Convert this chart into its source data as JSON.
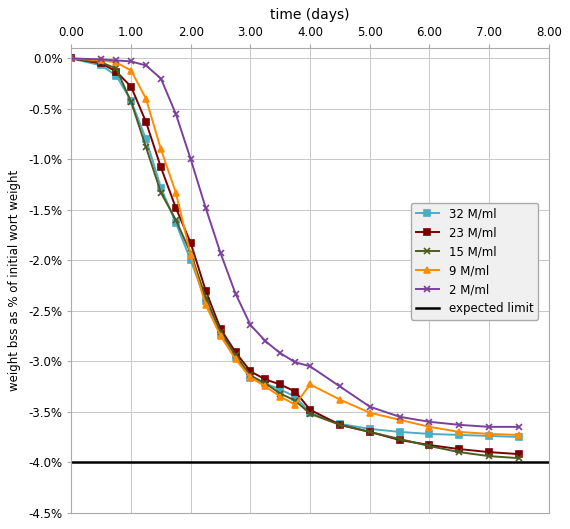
{
  "title": "time (days)",
  "ylabel": "weight bss as % of initial wort weight",
  "xlim": [
    0,
    8.0
  ],
  "ylim": [
    -0.045,
    0.001
  ],
  "xticks": [
    0,
    1.0,
    2.0,
    3.0,
    4.0,
    5.0,
    6.0,
    7.0,
    8.0
  ],
  "yticks": [
    0.0,
    -0.005,
    -0.01,
    -0.015,
    -0.02,
    -0.025,
    -0.03,
    -0.035,
    -0.04,
    -0.045
  ],
  "series": [
    {
      "label": "32 M/ml",
      "color": "#4BACC6",
      "marker": "s",
      "x": [
        0,
        0.5,
        0.75,
        1.0,
        1.25,
        1.5,
        1.75,
        2.0,
        2.25,
        2.5,
        2.75,
        3.0,
        3.25,
        3.5,
        3.75,
        4.0,
        4.5,
        5.0,
        5.5,
        6.0,
        6.5,
        7.0,
        7.5
      ],
      "y": [
        0,
        -0.0007,
        -0.0017,
        -0.0042,
        -0.008,
        -0.0128,
        -0.0163,
        -0.02,
        -0.024,
        -0.0274,
        -0.0296,
        -0.0317,
        -0.0322,
        -0.0328,
        -0.0335,
        -0.0351,
        -0.0362,
        -0.0367,
        -0.037,
        -0.0372,
        -0.0373,
        -0.0374,
        -0.0375
      ]
    },
    {
      "label": "23 M/ml",
      "color": "#7B0000",
      "marker": "s",
      "x": [
        0,
        0.5,
        0.75,
        1.0,
        1.25,
        1.5,
        1.75,
        2.0,
        2.25,
        2.5,
        2.75,
        3.0,
        3.25,
        3.5,
        3.75,
        4.0,
        4.5,
        5.0,
        5.5,
        6.0,
        6.5,
        7.0,
        7.5
      ],
      "y": [
        0,
        -0.0005,
        -0.0013,
        -0.0028,
        -0.0063,
        -0.0108,
        -0.0148,
        -0.0183,
        -0.023,
        -0.0268,
        -0.0291,
        -0.031,
        -0.0318,
        -0.0323,
        -0.033,
        -0.0348,
        -0.0363,
        -0.037,
        -0.0378,
        -0.0383,
        -0.0387,
        -0.039,
        -0.0392
      ]
    },
    {
      "label": "15 M/ml",
      "color": "#4E5B1F",
      "marker": "x",
      "x": [
        0,
        0.5,
        0.75,
        1.0,
        1.25,
        1.5,
        1.75,
        2.0,
        2.25,
        2.5,
        2.75,
        3.0,
        3.25,
        3.5,
        3.75,
        4.0,
        4.5,
        5.0,
        5.5,
        6.0,
        6.5,
        7.0,
        7.5
      ],
      "y": [
        0,
        -0.0004,
        -0.001,
        -0.0043,
        -0.0088,
        -0.0133,
        -0.016,
        -0.0193,
        -0.0237,
        -0.0271,
        -0.0294,
        -0.0314,
        -0.0322,
        -0.0332,
        -0.0339,
        -0.0352,
        -0.0363,
        -0.037,
        -0.0377,
        -0.0384,
        -0.039,
        -0.0394,
        -0.0396
      ]
    },
    {
      "label": "9 M/ml",
      "color": "#FF8C00",
      "marker": "^",
      "x": [
        0,
        0.5,
        0.75,
        1.0,
        1.25,
        1.5,
        1.75,
        2.0,
        2.25,
        2.5,
        2.75,
        3.0,
        3.25,
        3.5,
        3.75,
        4.0,
        4.5,
        5.0,
        5.5,
        6.0,
        6.5,
        7.0,
        7.5
      ],
      "y": [
        0,
        -0.0002,
        -0.0004,
        -0.0012,
        -0.004,
        -0.009,
        -0.0133,
        -0.0195,
        -0.0244,
        -0.0275,
        -0.0298,
        -0.0316,
        -0.0325,
        -0.0335,
        -0.0343,
        -0.0323,
        -0.0338,
        -0.0351,
        -0.0358,
        -0.0365,
        -0.037,
        -0.0372,
        -0.0373
      ]
    },
    {
      "label": "2 M/ml",
      "color": "#7B3F9E",
      "marker": "x",
      "x": [
        0,
        0.5,
        0.75,
        1.0,
        1.25,
        1.5,
        1.75,
        2.0,
        2.25,
        2.5,
        2.75,
        3.0,
        3.25,
        3.5,
        3.75,
        4.0,
        4.5,
        5.0,
        5.5,
        6.0,
        6.5,
        7.0,
        7.5
      ],
      "y": [
        0,
        -0.0001,
        -0.0002,
        -0.0003,
        -0.0007,
        -0.002,
        -0.0055,
        -0.01,
        -0.0148,
        -0.0193,
        -0.0233,
        -0.0264,
        -0.028,
        -0.0292,
        -0.0301,
        -0.0305,
        -0.0325,
        -0.0345,
        -0.0355,
        -0.036,
        -0.0363,
        -0.0365,
        -0.0365
      ]
    }
  ],
  "expected_limit": -0.04,
  "background_color": "#FFFFFF",
  "grid_color": "#C8C8C8"
}
